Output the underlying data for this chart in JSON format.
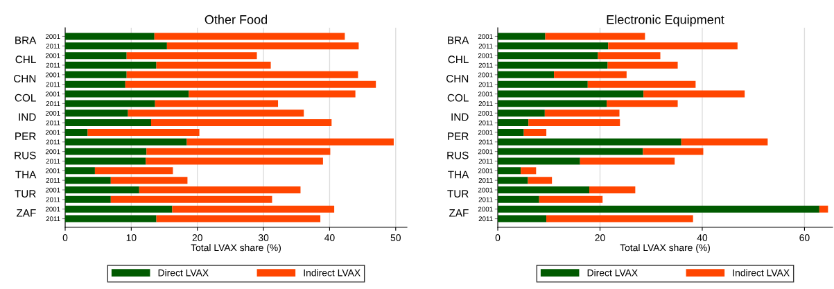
{
  "chart_data": [
    {
      "type": "bar",
      "orientation": "horizontal",
      "stacked": true,
      "title": "Other Food",
      "xlabel": "Total LVAX share (%)",
      "categories": [
        "2001",
        "2011",
        "2001",
        "2011",
        "2001",
        "2011",
        "2001",
        "2011",
        "2001",
        "2011",
        "2001",
        "2011",
        "2001",
        "2011",
        "2001",
        "2011",
        "2001",
        "2011",
        "2001",
        "2011"
      ],
      "annotations": [
        "BRA",
        "CHL",
        "CHN",
        "COL",
        "IND",
        "PER",
        "RUS",
        "THA",
        "TUR",
        "ZAF"
      ],
      "series": [
        {
          "name": "Direct LVAX",
          "color": "#005a00",
          "values": [
            13.5,
            15.4,
            9.3,
            13.8,
            9.3,
            9.1,
            18.7,
            13.6,
            9.5,
            13.0,
            3.4,
            18.4,
            12.3,
            12.2,
            4.5,
            6.9,
            11.2,
            6.9,
            16.2,
            13.8
          ]
        },
        {
          "name": "Indirect LVAX",
          "color": "#ff4500",
          "values": [
            28.8,
            29.0,
            19.7,
            17.3,
            35.0,
            37.9,
            25.2,
            18.6,
            26.6,
            27.3,
            16.9,
            31.3,
            27.8,
            26.8,
            11.8,
            11.6,
            24.4,
            24.4,
            24.5,
            24.8
          ]
        }
      ],
      "xlim": [
        0,
        51.7
      ],
      "xticks": [
        0,
        10,
        20,
        30,
        40,
        50
      ],
      "grid": "x",
      "legend": "bottom"
    },
    {
      "type": "bar",
      "orientation": "horizontal",
      "stacked": true,
      "title": "Electronic Equipment",
      "xlabel": "Total LVAX share (%)",
      "categories": [
        "2001",
        "2011",
        "2001",
        "2011",
        "2001",
        "2011",
        "2001",
        "2011",
        "2001",
        "2011",
        "2001",
        "2011",
        "2001",
        "2011",
        "2001",
        "2011",
        "2001",
        "2011",
        "2001",
        "2011"
      ],
      "annotations": [
        "BRA",
        "CHL",
        "CHN",
        "COL",
        "IND",
        "PER",
        "RUS",
        "THA",
        "TUR",
        "ZAF"
      ],
      "series": [
        {
          "name": "Direct LVAX",
          "color": "#005a00",
          "values": [
            9.3,
            21.6,
            19.6,
            21.5,
            11.0,
            17.6,
            28.5,
            21.3,
            9.2,
            6.0,
            5.1,
            35.9,
            28.4,
            16.1,
            4.5,
            5.9,
            17.9,
            8.1,
            62.9,
            9.5
          ]
        },
        {
          "name": "Indirect LVAX",
          "color": "#ff4500",
          "values": [
            19.5,
            25.3,
            12.2,
            13.7,
            14.2,
            21.1,
            19.8,
            13.9,
            14.6,
            17.9,
            4.4,
            16.9,
            11.8,
            18.5,
            3.0,
            4.7,
            9.0,
            12.4,
            1.7,
            28.7
          ]
        }
      ],
      "xlim": [
        0,
        65.5
      ],
      "xticks": [
        0,
        20,
        40,
        60
      ],
      "grid": "x",
      "legend": "bottom"
    }
  ]
}
